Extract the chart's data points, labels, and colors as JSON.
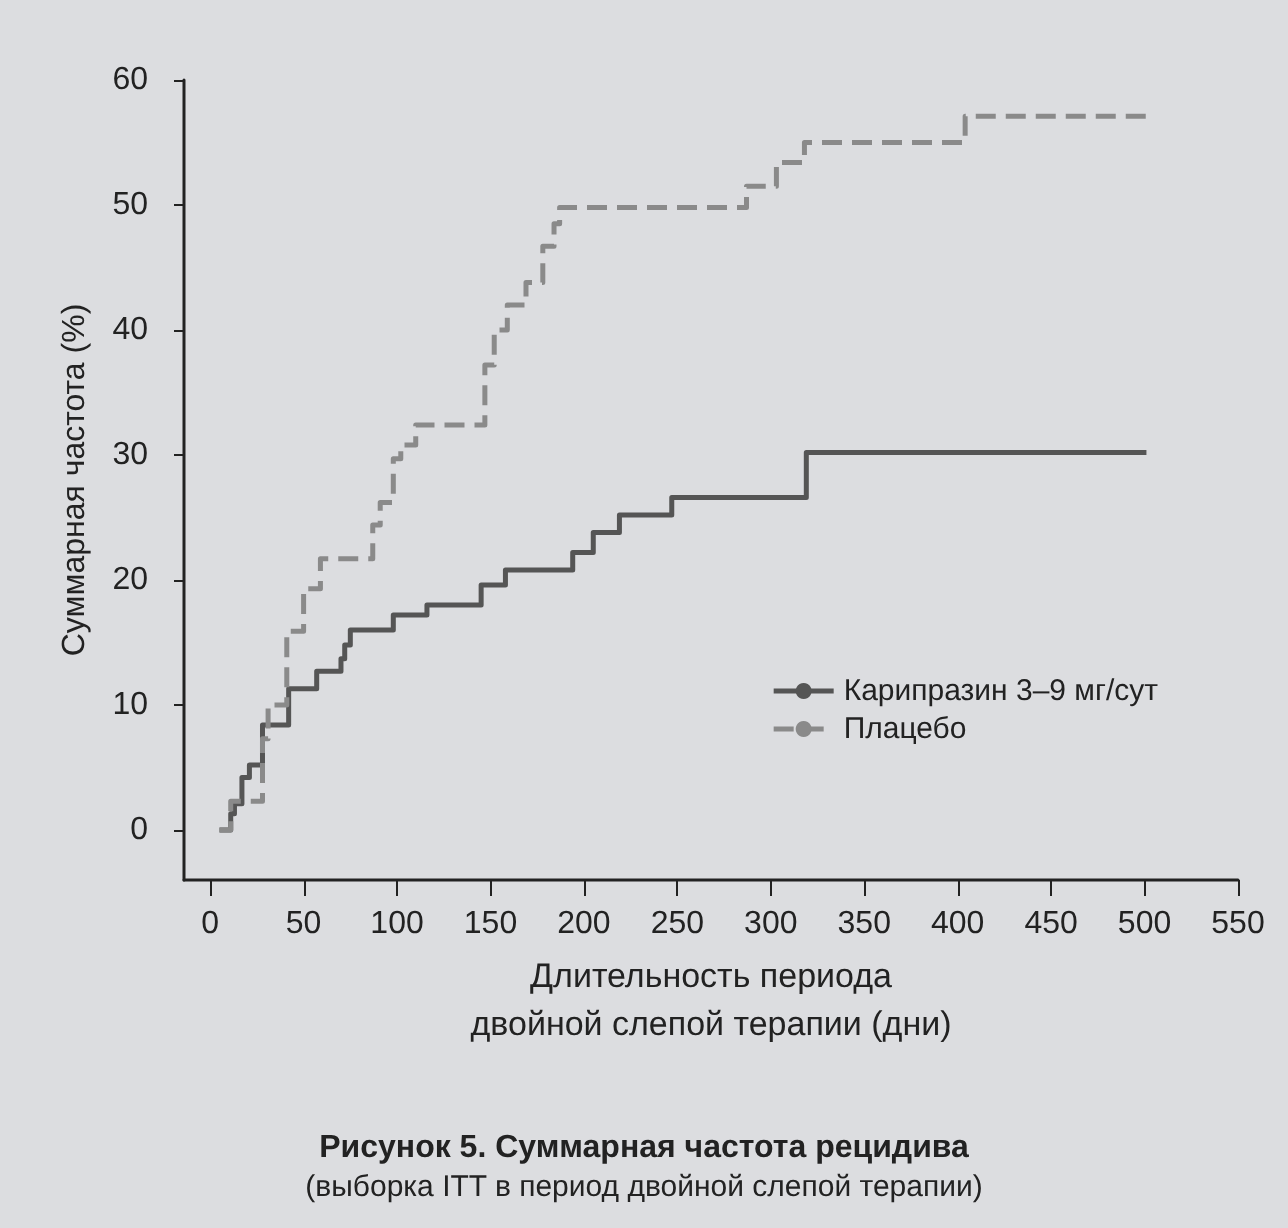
{
  "chart_data": {
    "type": "step",
    "title": "Рисунок 5. Суммарная частота рецидива",
    "subtitle": "(выборка ITT в период двойной слепой терапии)",
    "xlabel": "Длительность периода двойной слепой терапии (дни)",
    "ylabel": "Суммарная частота (%)",
    "series": [
      {
        "name": "Карипразин 3–9 мг/сут",
        "color": "#555555",
        "line_style": "solid",
        "x": [
          5,
          11,
          13,
          17,
          21,
          28,
          42,
          57,
          70,
          72,
          75,
          98,
          116,
          145,
          158,
          194,
          205,
          219,
          247,
          319,
          501
        ],
        "values": [
          0,
          1.3,
          2.1,
          4.2,
          5.2,
          8.4,
          11.3,
          12.7,
          13.7,
          14.8,
          16.0,
          17.2,
          18.0,
          19.6,
          20.8,
          22.2,
          23.8,
          25.2,
          26.6,
          30.2,
          30.2
        ]
      },
      {
        "name": "Плацебо",
        "color": "#8a8a8a",
        "line_style": "dashed",
        "x": [
          5,
          11,
          28,
          31,
          41,
          50,
          59,
          87,
          91,
          98,
          102,
          110,
          147,
          152,
          159,
          169,
          178,
          184,
          187,
          287,
          303,
          318,
          404,
          503
        ],
        "values": [
          0,
          2.3,
          7.3,
          10.0,
          15.9,
          19.3,
          21.7,
          24.4,
          26.2,
          29.7,
          30.8,
          32.4,
          37.2,
          40.0,
          42.0,
          43.8,
          46.7,
          48.5,
          49.8,
          51.5,
          53.4,
          55.0,
          57.1,
          57.1
        ]
      }
    ],
    "xlim": [
      -14,
      550
    ],
    "xticks": [
      0,
      50,
      100,
      150,
      200,
      250,
      300,
      350,
      400,
      450,
      500,
      550
    ],
    "ylim": [
      -4,
      60
    ],
    "yticks": [
      0,
      10,
      20,
      30,
      40,
      50,
      60
    ],
    "legend": "bottom right",
    "marker": "none"
  }
}
